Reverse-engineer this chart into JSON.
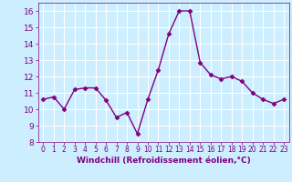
{
  "x": [
    0,
    1,
    2,
    3,
    4,
    5,
    6,
    7,
    8,
    9,
    10,
    11,
    12,
    13,
    14,
    15,
    16,
    17,
    18,
    19,
    20,
    21,
    22,
    23
  ],
  "y": [
    10.6,
    10.75,
    10.0,
    11.2,
    11.3,
    11.3,
    10.55,
    9.5,
    9.8,
    8.5,
    10.6,
    12.4,
    14.6,
    16.0,
    16.0,
    12.85,
    12.1,
    11.85,
    12.0,
    11.7,
    11.0,
    10.6,
    10.35,
    10.6
  ],
  "line_color": "#800080",
  "marker": "D",
  "marker_size": 2.5,
  "bg_color": "#cceeff",
  "grid_color": "#ffffff",
  "xlabel": "Windchill (Refroidissement éolien,°C)",
  "xlim": [
    -0.5,
    23.5
  ],
  "ylim": [
    8,
    16.5
  ],
  "yticks": [
    8,
    9,
    10,
    11,
    12,
    13,
    14,
    15,
    16
  ],
  "xticks": [
    0,
    1,
    2,
    3,
    4,
    5,
    6,
    7,
    8,
    9,
    10,
    11,
    12,
    13,
    14,
    15,
    16,
    17,
    18,
    19,
    20,
    21,
    22,
    23
  ],
  "xlabel_fontsize": 6.5,
  "tick_fontsize": 6.5,
  "line_width": 1.0
}
